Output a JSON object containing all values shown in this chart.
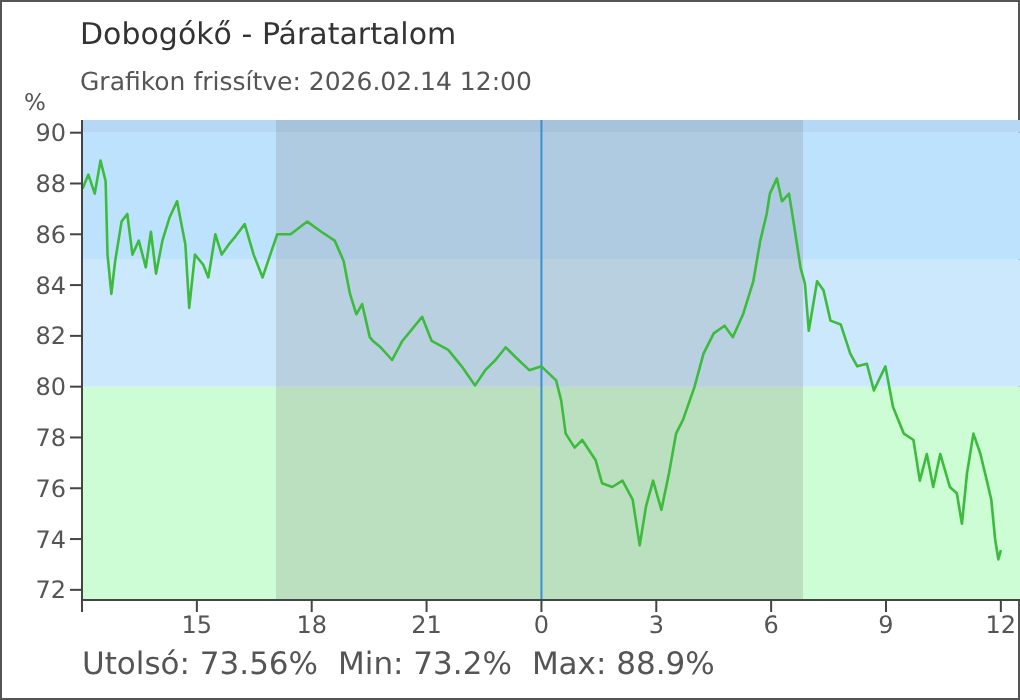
{
  "chart_data": {
    "type": "line",
    "title": "Dobogókő - Páratartalom",
    "subtitle": "Grafikon frissítve: 2026.02.14 12:00",
    "ylabel": "%",
    "annotations": [
      "Utolsó: 73.56%",
      "Min: 73.2%",
      "Max: 88.9%"
    ],
    "xlim": [
      "2026-02-13T12:00",
      "2026-02-14T12:30"
    ],
    "ylim": [
      71.6,
      90.5
    ],
    "xticks": [
      {
        "value": "2026-02-13T12:00",
        "label": null
      },
      {
        "value": "2026-02-13T15:00",
        "label": "15"
      },
      {
        "value": "2026-02-13T18:00",
        "label": "18"
      },
      {
        "value": "2026-02-13T21:00",
        "label": "21"
      },
      {
        "value": "2026-02-14T00:00",
        "label": "0"
      },
      {
        "value": "2026-02-14T03:00",
        "label": "3"
      },
      {
        "value": "2026-02-14T06:00",
        "label": "6"
      },
      {
        "value": "2026-02-14T09:00",
        "label": "9"
      },
      {
        "value": "2026-02-14T12:00",
        "label": "12"
      }
    ],
    "yticks": [
      72,
      74,
      76,
      78,
      80,
      82,
      84,
      86,
      88,
      90
    ],
    "marker": "none",
    "line_style": "solid",
    "bands": [
      {
        "axis": "y",
        "from": 71.6,
        "to": 80,
        "color": "#ccfdd4"
      },
      {
        "axis": "y",
        "from": 80,
        "to": 85,
        "color": "#cbe8fd"
      },
      {
        "axis": "y",
        "from": 85,
        "to": 90,
        "color": "#bde2fe"
      },
      {
        "axis": "y",
        "from": 90,
        "to": 90.5,
        "color": "#b4d8f6"
      },
      {
        "axis": "x",
        "from": "2026-02-13T17:04",
        "to": "2026-02-14T06:50",
        "color": "#7a7a7a"
      }
    ],
    "ref_lines": [
      {
        "axis": "x",
        "value": "2026-02-14T00:00",
        "color": "#3a8fd0"
      }
    ],
    "series": [
      {
        "color": "#3dbb3d",
        "x": [
          "2026-02-13T12:01",
          "2026-02-13T12:10",
          "2026-02-13T12:20",
          "2026-02-13T12:29",
          "2026-02-13T12:37",
          "2026-02-13T12:40",
          "2026-02-13T12:46",
          "2026-02-13T12:52",
          "2026-02-13T13:02",
          "2026-02-13T13:11",
          "2026-02-13T13:19",
          "2026-02-13T13:29",
          "2026-02-13T13:40",
          "2026-02-13T13:48",
          "2026-02-13T13:56",
          "2026-02-13T14:06",
          "2026-02-13T14:17",
          "2026-02-13T14:29",
          "2026-02-13T14:35",
          "2026-02-13T14:42",
          "2026-02-13T14:48",
          "2026-02-13T14:57",
          "2026-02-13T15:10",
          "2026-02-13T15:18",
          "2026-02-13T15:29",
          "2026-02-13T15:39",
          "2026-02-13T15:50",
          "2026-02-13T16:00",
          "2026-02-13T16:15",
          "2026-02-13T16:29",
          "2026-02-13T16:43",
          "2026-02-13T16:55",
          "2026-02-13T17:06",
          "2026-02-13T17:27",
          "2026-02-13T17:53",
          "2026-02-13T18:15",
          "2026-02-13T18:36",
          "2026-02-13T18:50",
          "2026-02-13T19:00",
          "2026-02-13T19:10",
          "2026-02-13T19:19",
          "2026-02-13T19:31",
          "2026-02-13T19:36",
          "2026-02-13T19:48",
          "2026-02-13T20:06",
          "2026-02-13T20:22",
          "2026-02-13T20:53",
          "2026-02-13T21:08",
          "2026-02-13T21:34",
          "2026-02-13T21:55",
          "2026-02-13T22:16",
          "2026-02-13T22:32",
          "2026-02-13T22:48",
          "2026-02-13T23:04",
          "2026-02-13T23:20",
          "2026-02-13T23:41",
          "2026-02-14T00:00",
          "2026-02-14T00:23",
          "2026-02-14T00:31",
          "2026-02-14T00:38",
          "2026-02-14T00:52",
          "2026-02-14T01:04",
          "2026-02-14T01:25",
          "2026-02-14T01:35",
          "2026-02-14T01:51",
          "2026-02-14T02:07",
          "2026-02-14T02:23",
          "2026-02-14T02:34",
          "2026-02-14T02:44",
          "2026-02-14T02:55",
          "2026-02-14T03:08",
          "2026-02-14T03:20",
          "2026-02-14T03:31",
          "2026-02-14T03:42",
          "2026-02-14T04:00",
          "2026-02-14T04:14",
          "2026-02-14T04:30",
          "2026-02-14T04:47",
          "2026-02-14T05:00",
          "2026-02-14T05:16",
          "2026-02-14T05:32",
          "2026-02-14T05:43",
          "2026-02-14T05:53",
          "2026-02-14T05:58",
          "2026-02-14T06:09",
          "2026-02-14T06:17",
          "2026-02-14T06:28",
          "2026-02-14T06:35",
          "2026-02-14T06:46",
          "2026-02-14T06:53",
          "2026-02-14T06:59",
          "2026-02-14T07:12",
          "2026-02-14T07:22",
          "2026-02-14T07:33",
          "2026-02-14T07:49",
          "2026-02-14T08:04",
          "2026-02-14T08:15",
          "2026-02-14T08:30",
          "2026-02-14T08:41",
          "2026-02-14T08:59",
          "2026-02-14T09:11",
          "2026-02-14T09:28",
          "2026-02-14T09:43",
          "2026-02-14T09:53",
          "2026-02-14T10:04",
          "2026-02-14T10:14",
          "2026-02-14T10:25",
          "2026-02-14T10:40",
          "2026-02-14T10:51",
          "2026-02-14T10:59",
          "2026-02-14T11:07",
          "2026-02-14T11:17",
          "2026-02-14T11:28",
          "2026-02-14T11:38",
          "2026-02-14T11:45",
          "2026-02-14T11:51",
          "2026-02-14T11:56",
          "2026-02-14T12:00"
        ],
        "values": [
          87.8,
          88.35,
          87.6,
          88.9,
          88.1,
          85.2,
          83.65,
          84.95,
          86.5,
          86.8,
          85.2,
          85.75,
          84.7,
          86.1,
          84.45,
          85.75,
          86.65,
          87.3,
          86.5,
          85.6,
          83.1,
          85.2,
          84.8,
          84.3,
          86.0,
          85.2,
          85.6,
          85.9,
          86.4,
          85.2,
          84.3,
          85.2,
          86.0,
          86.0,
          86.5,
          86.1,
          85.75,
          84.95,
          83.65,
          82.85,
          83.25,
          81.95,
          81.8,
          81.55,
          81.05,
          81.8,
          82.75,
          81.8,
          81.45,
          80.8,
          80.05,
          80.65,
          81.05,
          81.55,
          81.15,
          80.65,
          80.8,
          80.25,
          79.45,
          78.15,
          77.6,
          77.9,
          77.1,
          76.2,
          76.05,
          76.3,
          75.55,
          73.75,
          75.3,
          76.3,
          75.15,
          76.6,
          78.15,
          78.7,
          80.0,
          81.3,
          82.1,
          82.4,
          81.95,
          82.85,
          84.15,
          85.75,
          86.8,
          87.6,
          88.2,
          87.3,
          87.6,
          86.5,
          84.7,
          84.05,
          82.2,
          84.15,
          83.8,
          82.6,
          82.45,
          81.3,
          80.8,
          80.9,
          79.85,
          80.8,
          79.2,
          78.15,
          77.9,
          76.3,
          77.35,
          76.05,
          77.35,
          76.05,
          75.8,
          74.6,
          76.6,
          78.15,
          77.35,
          76.3,
          75.55,
          74.0,
          73.2,
          73.56
        ]
      }
    ]
  }
}
